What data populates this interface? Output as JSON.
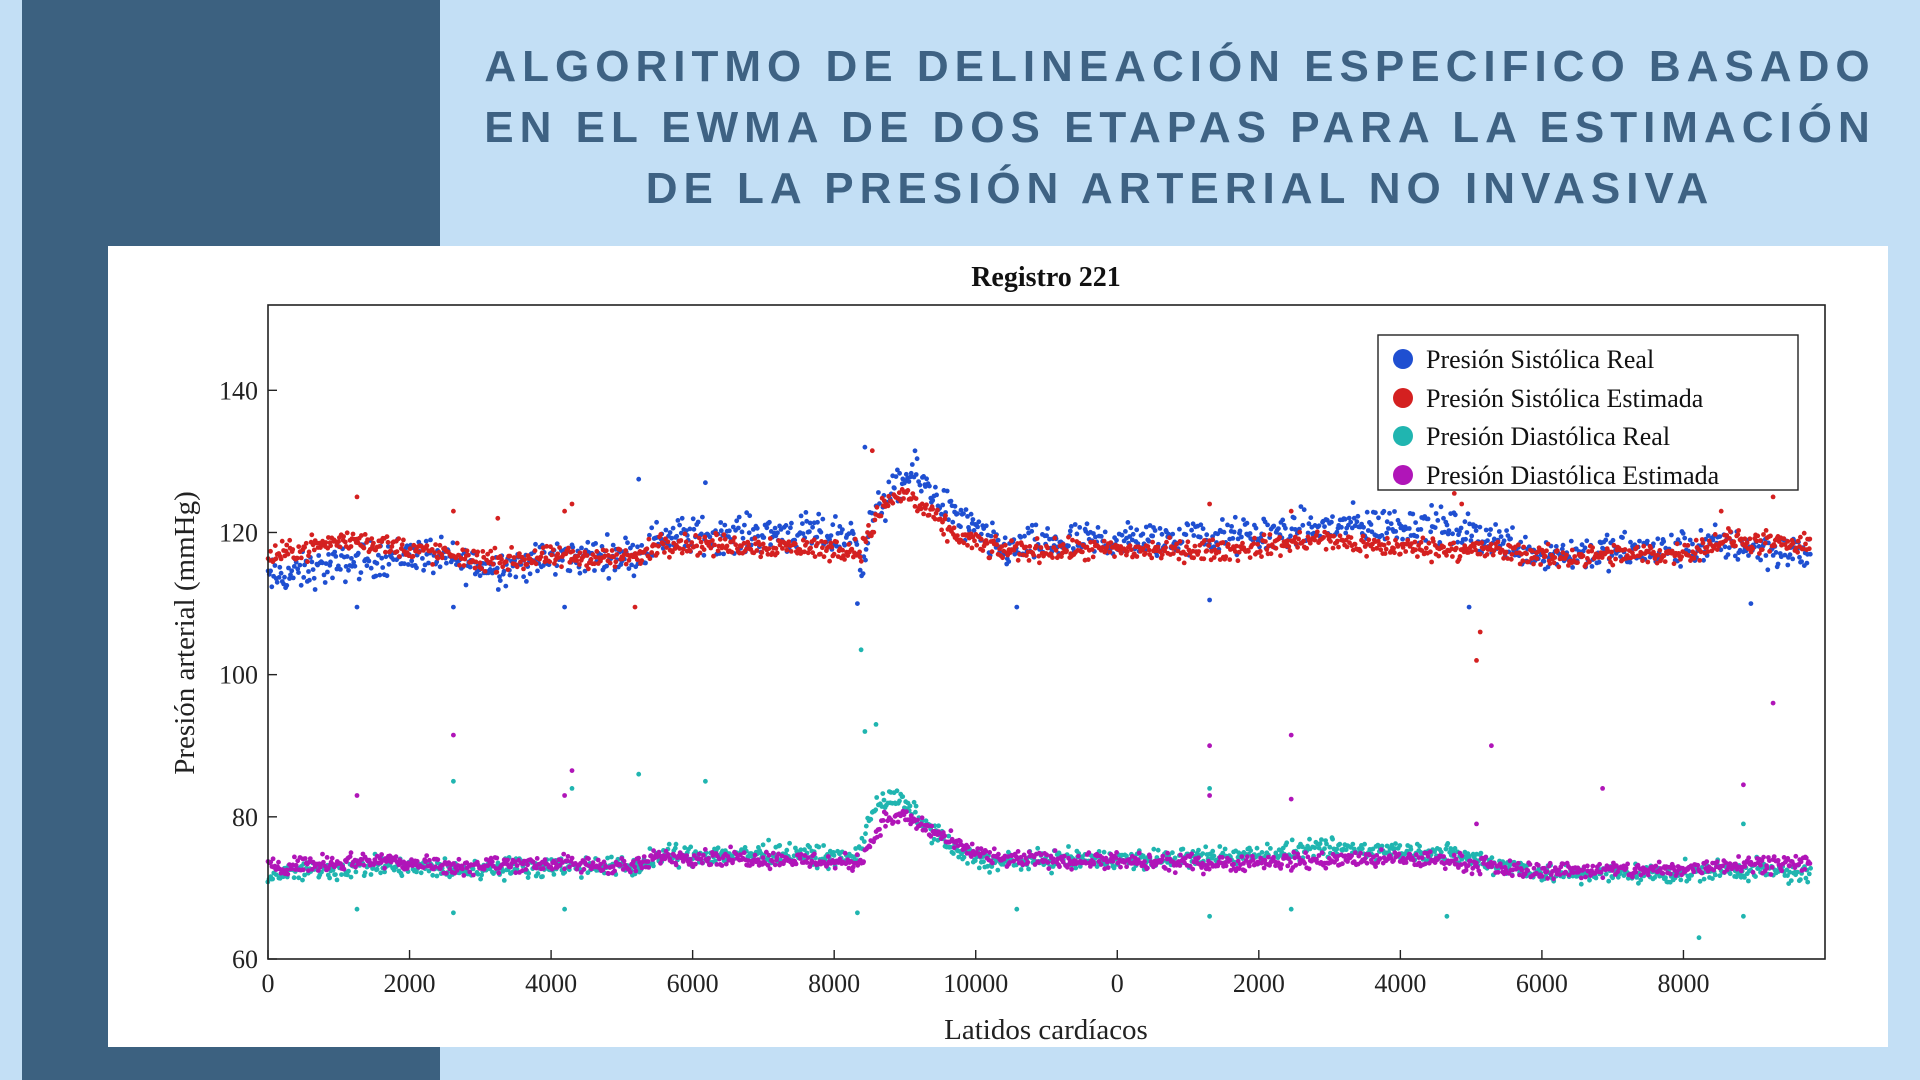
{
  "slide": {
    "title": "ALGORITMO DE DELINEACIÓN ESPECIFICO BASADO EN EL EWMA DE DOS ETAPAS PARA LA ESTIMACIÓN DE LA PRESIÓN ARTERIAL NO INVASIVA",
    "band_color": "#3c6180",
    "background_color": "#c3dff5"
  },
  "chart_data": {
    "type": "scatter",
    "title": "Registro 221",
    "xlabel": "Latidos cardíacos",
    "ylabel": "Presión arterial (mmHg)",
    "x_range": [
      0,
      21000
    ],
    "ylim": [
      60,
      152
    ],
    "x_tick_labels": [
      "0",
      "2000",
      "4000",
      "6000",
      "8000",
      "10000",
      "0",
      "2000",
      "4000",
      "6000",
      "8000"
    ],
    "y_ticks": [
      60,
      80,
      100,
      120,
      140
    ],
    "grid": false,
    "legend_position": "top-right",
    "series": [
      {
        "name": "Presión Sistólica Real",
        "color": "#1f4fd1",
        "profile": [
          [
            0,
            113.5
          ],
          [
            1200,
            116
          ],
          [
            2000,
            117
          ],
          [
            3000,
            115
          ],
          [
            4000,
            116.5
          ],
          [
            5000,
            117
          ],
          [
            5300,
            119.5
          ],
          [
            7000,
            120
          ],
          [
            7900,
            119.5
          ],
          [
            8000,
            116
          ],
          [
            8200,
            123
          ],
          [
            8700,
            128.5
          ],
          [
            9300,
            122
          ],
          [
            9900,
            117.5
          ],
          [
            10500,
            118.5
          ],
          [
            12000,
            119
          ],
          [
            13200,
            119.5
          ],
          [
            14500,
            121
          ],
          [
            15700,
            121
          ],
          [
            16600,
            119
          ],
          [
            17200,
            117
          ],
          [
            18900,
            117.5
          ],
          [
            19700,
            118.5
          ],
          [
            20700,
            117
          ]
        ],
        "spread": 2.2,
        "outliers": [
          [
            1200,
            109.5
          ],
          [
            2500,
            109.5
          ],
          [
            4000,
            109.5
          ],
          [
            5000,
            127.5
          ],
          [
            5900,
            127
          ],
          [
            7950,
            110
          ],
          [
            8050,
            132
          ],
          [
            10100,
            109.5
          ],
          [
            12700,
            110.5
          ],
          [
            16200,
            109.5
          ],
          [
            20000,
            110
          ]
        ]
      },
      {
        "name": "Presión Sistólica Estimada",
        "color": "#d42020",
        "profile": [
          [
            0,
            116.5
          ],
          [
            800,
            118.5
          ],
          [
            1200,
            119
          ],
          [
            2000,
            117.5
          ],
          [
            3000,
            116
          ],
          [
            4000,
            116.5
          ],
          [
            5000,
            116.5
          ],
          [
            5300,
            118.5
          ],
          [
            7000,
            118
          ],
          [
            7900,
            117.5
          ],
          [
            8000,
            117.5
          ],
          [
            8300,
            124
          ],
          [
            8600,
            125.5
          ],
          [
            9200,
            120
          ],
          [
            9800,
            117.5
          ],
          [
            11000,
            117.5
          ],
          [
            13000,
            117.5
          ],
          [
            14200,
            119
          ],
          [
            15000,
            118
          ],
          [
            16500,
            117.5
          ],
          [
            17300,
            116.5
          ],
          [
            19000,
            117
          ],
          [
            19700,
            119
          ],
          [
            20700,
            118
          ]
        ],
        "spread": 1.3,
        "outliers": [
          [
            1200,
            125
          ],
          [
            2500,
            123
          ],
          [
            3100,
            122
          ],
          [
            4000,
            123
          ],
          [
            4100,
            124
          ],
          [
            4950,
            109.5
          ],
          [
            8150,
            131.5
          ],
          [
            12700,
            124
          ],
          [
            13800,
            123
          ],
          [
            16000,
            125.5
          ],
          [
            16100,
            124
          ],
          [
            16300,
            102
          ],
          [
            16350,
            106
          ],
          [
            19600,
            123
          ],
          [
            20300,
            125
          ]
        ]
      },
      {
        "name": "Presión Diastólica Real",
        "color": "#20b5b0",
        "profile": [
          [
            0,
            72
          ],
          [
            1500,
            73
          ],
          [
            2500,
            72.5
          ],
          [
            3500,
            73
          ],
          [
            5000,
            73
          ],
          [
            5300,
            74.5
          ],
          [
            7000,
            75
          ],
          [
            7900,
            74
          ],
          [
            8000,
            76
          ],
          [
            8200,
            82
          ],
          [
            8500,
            82.5
          ],
          [
            9300,
            75
          ],
          [
            9800,
            73.5
          ],
          [
            10500,
            74
          ],
          [
            12000,
            74
          ],
          [
            13000,
            74.5
          ],
          [
            14500,
            75.5
          ],
          [
            15800,
            75
          ],
          [
            16800,
            73
          ],
          [
            17300,
            72
          ],
          [
            19000,
            72
          ],
          [
            19800,
            72.5
          ],
          [
            20700,
            72
          ]
        ],
        "spread": 1.2,
        "outliers": [
          [
            1200,
            67
          ],
          [
            2500,
            66.5
          ],
          [
            2500,
            85
          ],
          [
            3100,
            73
          ],
          [
            4000,
            67
          ],
          [
            4100,
            84
          ],
          [
            5000,
            86
          ],
          [
            5900,
            85
          ],
          [
            7950,
            66.5
          ],
          [
            8000,
            103.5
          ],
          [
            8050,
            92
          ],
          [
            8200,
            93
          ],
          [
            10100,
            67
          ],
          [
            12700,
            66
          ],
          [
            12700,
            84
          ],
          [
            13800,
            67
          ],
          [
            15900,
            66
          ],
          [
            19300,
            63
          ],
          [
            19900,
            66
          ],
          [
            19900,
            79
          ]
        ]
      },
      {
        "name": "Presión Diastólica Estimada",
        "color": "#b015b8",
        "profile": [
          [
            0,
            73
          ],
          [
            1500,
            74
          ],
          [
            2500,
            73
          ],
          [
            3500,
            73.5
          ],
          [
            5000,
            73
          ],
          [
            5300,
            74.5
          ],
          [
            7000,
            74
          ],
          [
            7900,
            73.5
          ],
          [
            8000,
            74
          ],
          [
            8300,
            79.5
          ],
          [
            8600,
            80
          ],
          [
            9300,
            76
          ],
          [
            9800,
            74
          ],
          [
            10500,
            74
          ],
          [
            12000,
            73.5
          ],
          [
            13000,
            73.5
          ],
          [
            14500,
            74
          ],
          [
            15800,
            74
          ],
          [
            16800,
            72.5
          ],
          [
            17300,
            72.5
          ],
          [
            19000,
            72.5
          ],
          [
            19800,
            73.5
          ],
          [
            20700,
            73.5
          ]
        ],
        "spread": 1.0,
        "outliers": [
          [
            1200,
            83
          ],
          [
            2500,
            91.5
          ],
          [
            4000,
            83
          ],
          [
            4100,
            86.5
          ],
          [
            12700,
            90
          ],
          [
            12700,
            83
          ],
          [
            13800,
            91.5
          ],
          [
            13800,
            82.5
          ],
          [
            16300,
            79
          ],
          [
            16500,
            90
          ],
          [
            18000,
            84
          ],
          [
            19900,
            84.5
          ],
          [
            20300,
            96
          ]
        ]
      }
    ]
  }
}
